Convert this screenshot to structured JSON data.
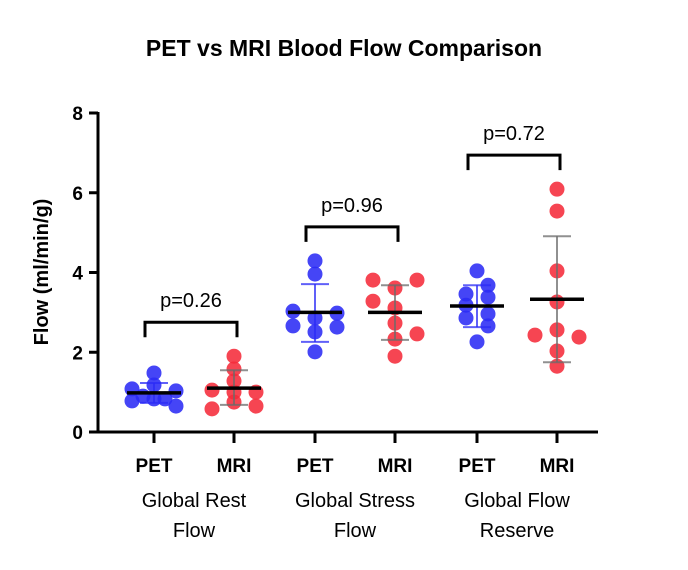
{
  "chart_data": {
    "type": "scatter",
    "subtype": "dot-plot-with-mean-sd",
    "title": "PET vs MRI Blood Flow Comparison",
    "xlabel": "",
    "ylabel": "Flow (ml/min/g)",
    "ylim": [
      0,
      8
    ],
    "yticks": [
      0,
      2,
      4,
      6,
      8
    ],
    "grid": false,
    "legend": "none",
    "colors": {
      "PET": "#2b2bf5",
      "MRI": "#f52b3a"
    },
    "categories": [
      "PET",
      "MRI",
      "PET",
      "MRI",
      "PET",
      "MRI"
    ],
    "groups": [
      {
        "label_lines": [
          "Global Rest",
          "Flow"
        ],
        "p_value_label": "p=0.26",
        "series": [
          {
            "name": "PET",
            "mean": 0.98,
            "sd_upper": 1.23,
            "sd_lower": 0.73,
            "points": [
              {
                "v": 1.48,
                "j": 0
              },
              {
                "v": 1.18,
                "j": 0
              },
              {
                "v": 1.08,
                "j": -1
              },
              {
                "v": 1.03,
                "j": 1
              },
              {
                "v": 0.9,
                "j": -0.5
              },
              {
                "v": 0.78,
                "j": -1
              },
              {
                "v": 0.83,
                "j": 0
              },
              {
                "v": 0.83,
                "j": 0.5
              },
              {
                "v": 0.65,
                "j": 1
              }
            ]
          },
          {
            "name": "MRI",
            "mean": 1.1,
            "sd_upper": 1.55,
            "sd_lower": 0.68,
            "points": [
              {
                "v": 1.9,
                "j": 0
              },
              {
                "v": 1.58,
                "j": 0
              },
              {
                "v": 1.28,
                "j": 0
              },
              {
                "v": 1.05,
                "j": -1
              },
              {
                "v": 1.0,
                "j": 0
              },
              {
                "v": 1.0,
                "j": 1
              },
              {
                "v": 0.75,
                "j": 0
              },
              {
                "v": 0.58,
                "j": -1
              },
              {
                "v": 0.65,
                "j": 1
              }
            ]
          }
        ]
      },
      {
        "label_lines": [
          "Global Stress",
          "Flow"
        ],
        "p_value_label": "p=0.96",
        "series": [
          {
            "name": "PET",
            "mean": 3.0,
            "sd_upper": 3.71,
            "sd_lower": 2.26,
            "points": [
              {
                "v": 4.29,
                "j": 0
              },
              {
                "v": 3.96,
                "j": 0
              },
              {
                "v": 3.03,
                "j": -1
              },
              {
                "v": 2.98,
                "j": 1
              },
              {
                "v": 2.86,
                "j": 0
              },
              {
                "v": 2.66,
                "j": -1
              },
              {
                "v": 2.63,
                "j": 1
              },
              {
                "v": 2.51,
                "j": 0
              },
              {
                "v": 2.01,
                "j": 0
              }
            ]
          },
          {
            "name": "MRI",
            "mean": 3.0,
            "sd_upper": 3.68,
            "sd_lower": 2.31,
            "points": [
              {
                "v": 3.81,
                "j": -1
              },
              {
                "v": 3.81,
                "j": 1
              },
              {
                "v": 3.61,
                "j": 0
              },
              {
                "v": 3.28,
                "j": -1
              },
              {
                "v": 3.11,
                "j": 0
              },
              {
                "v": 2.73,
                "j": 0
              },
              {
                "v": 2.46,
                "j": 1
              },
              {
                "v": 2.33,
                "j": 0
              },
              {
                "v": 1.9,
                "j": 0
              }
            ]
          }
        ]
      },
      {
        "label_lines": [
          "Global Flow",
          "Reserve"
        ],
        "p_value_label": "p=0.72",
        "series": [
          {
            "name": "PET",
            "mean": 3.16,
            "sd_upper": 3.68,
            "sd_lower": 2.63,
            "points": [
              {
                "v": 4.04,
                "j": 0
              },
              {
                "v": 3.68,
                "j": 0.5
              },
              {
                "v": 3.46,
                "j": -0.5
              },
              {
                "v": 3.38,
                "j": 0.5
              },
              {
                "v": 3.18,
                "j": -0.5
              },
              {
                "v": 2.96,
                "j": 0.5
              },
              {
                "v": 2.86,
                "j": -0.5
              },
              {
                "v": 2.66,
                "j": 0.5
              },
              {
                "v": 2.26,
                "j": 0
              }
            ]
          },
          {
            "name": "MRI",
            "mean": 3.33,
            "sd_upper": 4.91,
            "sd_lower": 1.75,
            "points": [
              {
                "v": 6.09,
                "j": 0
              },
              {
                "v": 5.54,
                "j": 0
              },
              {
                "v": 4.04,
                "j": 0
              },
              {
                "v": 3.26,
                "j": 0
              },
              {
                "v": 2.56,
                "j": 0
              },
              {
                "v": 2.43,
                "j": -1
              },
              {
                "v": 2.38,
                "j": 1
              },
              {
                "v": 2.03,
                "j": 0
              },
              {
                "v": 1.65,
                "j": 0
              }
            ]
          }
        ]
      }
    ]
  }
}
